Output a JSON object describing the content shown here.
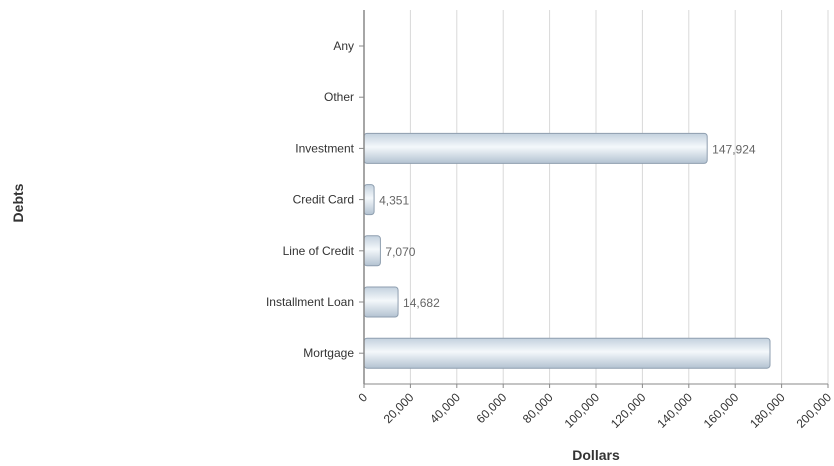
{
  "chart_data": {
    "type": "bar",
    "orientation": "horizontal",
    "xlabel": "Dollars",
    "ylabel": "Debts",
    "categories": [
      "Any",
      "Other",
      "Investment",
      "Credit Card",
      "Line of Credit",
      "Installment Loan",
      "Mortgage"
    ],
    "values": [
      null,
      null,
      147924,
      4351,
      7070,
      14682,
      175000
    ],
    "value_labels": [
      "",
      "",
      "147,924",
      "4,351",
      "7,070",
      "14,682",
      ""
    ],
    "xlim": [
      0,
      200000
    ],
    "xticks": [
      0,
      20000,
      40000,
      60000,
      80000,
      100000,
      120000,
      140000,
      160000,
      180000,
      200000
    ],
    "xtick_labels": [
      "0",
      "20,000",
      "40,000",
      "60,000",
      "80,000",
      "100,000",
      "120,000",
      "140,000",
      "160,000",
      "180,000",
      "200,000"
    ],
    "grid": "vertical",
    "legend": "none",
    "colors": {
      "bar_fill": "#d7e2ec",
      "bar_highlight": "#f4f8fb",
      "bar_stroke": "#8e9eaf",
      "grid": "#d9d9d9",
      "axis": "#888888"
    }
  }
}
